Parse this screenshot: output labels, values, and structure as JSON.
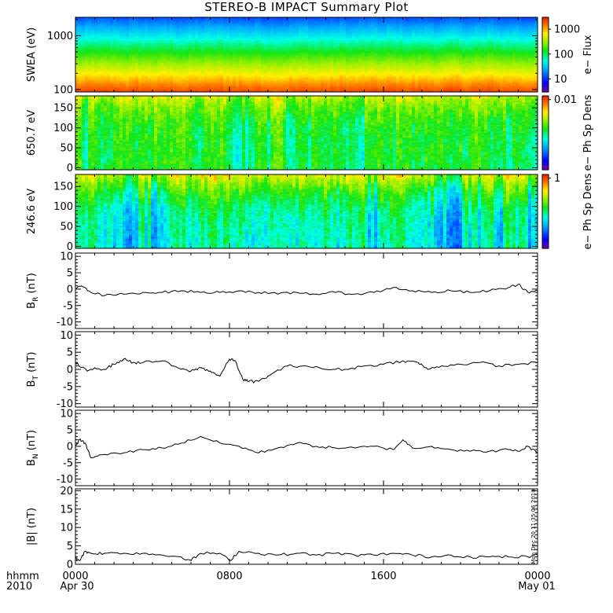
{
  "title": "STEREO-B IMPACT Summary Plot",
  "corner_label": {
    "line1": "hhmm",
    "line2": "2010"
  },
  "timestamp_text": "Mon Dec 20 11:35:06 2010",
  "x_axis": {
    "tick_labels": [
      {
        "top": "0000",
        "bottom": "Apr 30"
      },
      {
        "top": "0800",
        "bottom": ""
      },
      {
        "top": "1600",
        "bottom": ""
      },
      {
        "top": "0000",
        "bottom": "May 01"
      }
    ],
    "tick_hours": [
      0,
      8,
      16,
      24
    ],
    "range_hours": [
      0,
      24
    ]
  },
  "colors": {
    "line": "#000000",
    "axis": "#000000"
  },
  "chart_data": [
    {
      "type": "heatmap",
      "ylabel": "SWEA (eV)",
      "ylog": true,
      "ylim": [
        90,
        2200
      ],
      "yticks": [
        100,
        1000
      ],
      "ytick_labels": [
        "100",
        "1000"
      ],
      "colorbar": {
        "label": "e− Flux",
        "log": true,
        "range": [
          3,
          3000
        ],
        "tick_values": [
          10,
          100,
          1000
        ],
        "tick_labels": [
          "10",
          "100",
          "1000"
        ]
      },
      "profile": "energy"
    },
    {
      "type": "heatmap",
      "ylabel": "650.7 eV",
      "ylim": [
        -5,
        180
      ],
      "yticks": [
        0,
        50,
        100,
        150
      ],
      "ytick_labels": [
        "0",
        "50",
        "100",
        "150"
      ],
      "colorbar": {
        "label": "e− Ph Sp Dens",
        "tick_labels": [
          "0.01"
        ],
        "tick_positions": [
          0.95
        ]
      },
      "profile": "pad650"
    },
    {
      "type": "heatmap",
      "ylabel": "246.6 eV",
      "ylim": [
        -5,
        180
      ],
      "yticks": [
        0,
        50,
        100,
        150
      ],
      "ytick_labels": [
        "0",
        "50",
        "100",
        "150"
      ],
      "colorbar": {
        "label": "e− Ph Sp Dens",
        "tick_labels": [
          "1"
        ],
        "tick_positions": [
          0.95
        ]
      },
      "profile": "pad246"
    },
    {
      "type": "line",
      "ylabel_main": "B",
      "ylabel_sub": "R",
      "ylabel_unit": "(nT)",
      "ylim": [
        -12,
        11
      ],
      "yticks": [
        -10,
        -5,
        0,
        5,
        10
      ],
      "ytick_labels": [
        "-10",
        "-5",
        "0",
        "5",
        "10"
      ],
      "series": [
        {
          "x": [
            0,
            0.3,
            0.8,
            1.5,
            2.5,
            3.5,
            4.5,
            5.5,
            6.5,
            7.5,
            8.5,
            9.5,
            10.5,
            11.5,
            12.5,
            13.5,
            14.5,
            15.5,
            16.5,
            17.5,
            18.5,
            19.5,
            20.5,
            21.5,
            22.5,
            23.0,
            23.5,
            24
          ],
          "y": [
            0,
            1,
            -1,
            -2,
            -1.5,
            -1,
            -1,
            -0.5,
            -1,
            -1,
            -0.5,
            -1,
            -1.5,
            -1,
            -1.5,
            -1,
            -1.5,
            -1,
            0.5,
            -0.5,
            -1,
            -0.5,
            -1,
            -0.5,
            0.5,
            1.5,
            -1,
            -0.5
          ]
        }
      ]
    },
    {
      "type": "line",
      "ylabel_main": "B",
      "ylabel_sub": "T",
      "ylabel_unit": "(nT)",
      "ylim": [
        -11,
        11
      ],
      "yticks": [
        -10,
        -5,
        0,
        5,
        10
      ],
      "ytick_labels": [
        "-10",
        "-5",
        "0",
        "5",
        "10"
      ],
      "series": [
        {
          "x": [
            0,
            0.2,
            0.6,
            1.0,
            1.5,
            2.0,
            2.5,
            3.0,
            3.5,
            4.5,
            5.5,
            6.0,
            6.5,
            7.0,
            7.5,
            8.0,
            8.3,
            8.7,
            9.0,
            9.5,
            10.0,
            11.0,
            12.0,
            13.0,
            14.0,
            15.0,
            16.0,
            17.0,
            17.8,
            18.3,
            19.0,
            20.0,
            21.0,
            22.0,
            23.0,
            24
          ],
          "y": [
            2,
            1,
            -0.5,
            0.5,
            0,
            1.5,
            3,
            2,
            2,
            2.5,
            0,
            -0.5,
            0.5,
            -0.5,
            -2,
            3,
            2.5,
            -3,
            -3.5,
            -3.5,
            -2,
            1,
            1,
            0,
            0,
            1,
            1.5,
            2.5,
            2,
            0,
            1,
            1.5,
            2,
            1,
            1.5,
            2
          ]
        }
      ]
    },
    {
      "type": "line",
      "ylabel_main": "B",
      "ylabel_sub": "N",
      "ylabel_unit": "(nT)",
      "ylim": [
        -12,
        11
      ],
      "yticks": [
        -10,
        -5,
        0,
        5,
        10
      ],
      "ytick_labels": [
        "-10",
        "-5",
        "0",
        "5",
        "10"
      ],
      "series": [
        {
          "x": [
            0,
            0.2,
            0.5,
            0.8,
            1.5,
            2.5,
            3.5,
            4.5,
            5.5,
            6.5,
            7.5,
            8.5,
            9.5,
            10.5,
            11.5,
            12.5,
            13.5,
            14.5,
            15.5,
            16.5,
            17.0,
            17.5,
            18.5,
            19.5,
            20.5,
            21.5,
            22.5,
            23.0,
            23.5,
            24
          ],
          "y": [
            0,
            2,
            1,
            -3.5,
            -2.5,
            -2,
            -1,
            -0.5,
            1,
            3,
            1,
            0,
            -2,
            -0.5,
            1,
            0,
            -0.5,
            -0.5,
            0,
            -1,
            2,
            -0.5,
            0,
            -1,
            -1.5,
            -1.5,
            -1,
            -1.5,
            0,
            -2
          ]
        }
      ]
    },
    {
      "type": "line",
      "ylabel_main": "|B|",
      "ylabel_sub": "",
      "ylabel_unit": "(nT)",
      "ylim": [
        0,
        20.5
      ],
      "yticks": [
        0,
        5,
        10,
        15,
        20
      ],
      "ytick_labels": [
        "0",
        "5",
        "10",
        "15",
        "20"
      ],
      "series": [
        {
          "x": [
            0,
            0.2,
            0.5,
            0.8,
            1.5,
            2.5,
            3.5,
            4.5,
            5.5,
            6.0,
            6.5,
            7.5,
            8.0,
            8.5,
            9.5,
            10.5,
            11.5,
            12.5,
            13.5,
            14.5,
            15.5,
            16.5,
            17.5,
            18.5,
            19.5,
            20.5,
            21.5,
            22.5,
            23.5,
            24
          ],
          "y": [
            2,
            1,
            3.5,
            3,
            3,
            3,
            3,
            2.5,
            2,
            1,
            3,
            3,
            1,
            3.5,
            3,
            2.5,
            3,
            2.5,
            3,
            2.5,
            2.5,
            3,
            2.5,
            2,
            2.5,
            2,
            2,
            2,
            2,
            2.5
          ]
        }
      ]
    }
  ]
}
